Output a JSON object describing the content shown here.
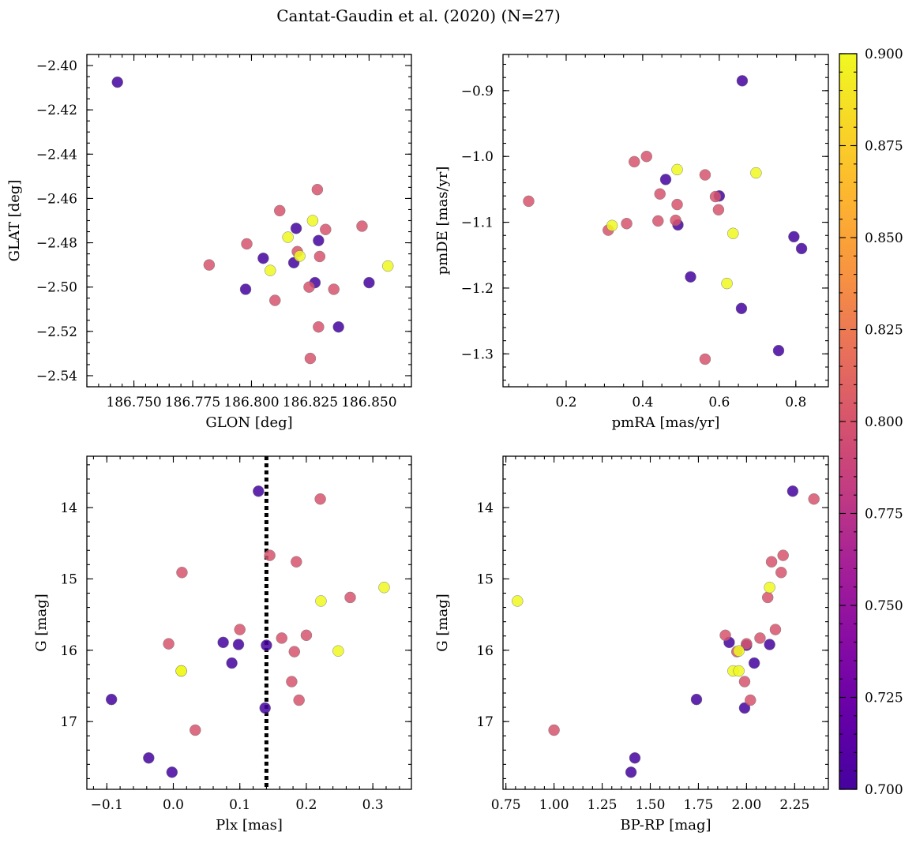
{
  "title": "Cantat-Gaudin et al. (2020) (N=27)",
  "colors": {
    "palette": [
      "#0d0887",
      "#2a0593",
      "#4c02a1",
      "#6a00a8",
      "#8c0ea3",
      "#a82296",
      "#c33d80",
      "#d8576b",
      "#ea7457",
      "#f89540",
      "#fdb42f",
      "#f8d627",
      "#f0f921"
    ],
    "cbar_min": 0.7,
    "cbar_max": 0.9
  },
  "colorbar": {
    "ticks": [
      0.7,
      0.725,
      0.75,
      0.775,
      0.8,
      0.825,
      0.85,
      0.875,
      0.9
    ],
    "tick_labels": [
      "0.700",
      "0.725",
      "0.750",
      "0.775",
      "0.800",
      "0.825",
      "0.850",
      "0.875",
      "0.900"
    ]
  },
  "stars": [
    {
      "glon": 186.743,
      "glat": -2.4075,
      "pmra": 0.66,
      "pmde": -0.885,
      "plx": -0.093,
      "g": 16.69,
      "bprp": 1.74,
      "p": 0.7
    },
    {
      "glon": 186.782,
      "glat": -2.49,
      "pmra": 0.102,
      "pmde": -1.068,
      "plx": 0.013,
      "g": 14.91,
      "bprp": 2.18,
      "p": 0.8
    },
    {
      "glon": 186.798,
      "glat": -2.4805,
      "pmra": 0.31,
      "pmde": -1.112,
      "plx": 0.1,
      "g": 15.71,
      "bprp": 2.15,
      "p": 0.8
    },
    {
      "glon": 186.7975,
      "glat": -2.501,
      "pmra": 0.46,
      "pmde": -1.035,
      "plx": 0.075,
      "g": 15.89,
      "bprp": 1.91,
      "p": 0.7
    },
    {
      "glon": 186.805,
      "glat": -2.487,
      "pmra": 0.492,
      "pmde": -1.104,
      "plx": 0.098,
      "g": 15.92,
      "bprp": 2.12,
      "p": 0.7
    },
    {
      "glon": 186.808,
      "glat": -2.4925,
      "pmra": 0.32,
      "pmde": -1.105,
      "plx": 0.012,
      "g": 16.29,
      "bprp": 1.93,
      "p": 0.9
    },
    {
      "glon": 186.81,
      "glat": -2.506,
      "pmra": 0.378,
      "pmde": -1.008,
      "plx": 0.163,
      "g": 15.83,
      "bprp": 2.07,
      "p": 0.8
    },
    {
      "glon": 186.812,
      "glat": -2.4655,
      "pmra": 0.41,
      "pmde": -1.0,
      "plx": 0.145,
      "g": 14.67,
      "bprp": 2.19,
      "p": 0.8
    },
    {
      "glon": 186.8155,
      "glat": -2.4775,
      "pmra": 0.636,
      "pmde": -1.117,
      "plx": 0.012,
      "g": 16.29,
      "bprp": 1.96,
      "p": 0.9
    },
    {
      "glon": 186.818,
      "glat": -2.489,
      "pmra": 0.525,
      "pmde": -1.183,
      "plx": 0.088,
      "g": 16.18,
      "bprp": 2.04,
      "p": 0.7
    },
    {
      "glon": 186.819,
      "glat": -2.4735,
      "pmra": 0.6,
      "pmde": -1.06,
      "plx": 0.14,
      "g": 15.93,
      "bprp": 2.0,
      "p": 0.7
    },
    {
      "glon": 186.8195,
      "glat": -2.484,
      "pmra": 0.445,
      "pmde": -1.057,
      "plx": 0.182,
      "g": 16.02,
      "bprp": 1.95,
      "p": 0.8
    },
    {
      "glon": 186.8205,
      "glat": -2.486,
      "pmra": 0.696,
      "pmde": -1.025,
      "plx": 0.248,
      "g": 16.01,
      "bprp": 1.96,
      "p": 0.9
    },
    {
      "glon": 186.8245,
      "glat": -2.5,
      "pmra": 0.59,
      "pmde": -1.061,
      "plx": 0.2,
      "g": 15.79,
      "bprp": 1.89,
      "p": 0.8
    },
    {
      "glon": 186.825,
      "glat": -2.5322,
      "pmra": 0.563,
      "pmde": -1.308,
      "plx": 0.033,
      "g": 17.12,
      "bprp": 1.0,
      "p": 0.8
    },
    {
      "glon": 186.826,
      "glat": -2.47,
      "pmra": 0.49,
      "pmde": -1.02,
      "plx": 0.317,
      "g": 15.12,
      "bprp": 2.12,
      "p": 0.9
    },
    {
      "glon": 186.827,
      "glat": -2.498,
      "pmra": 0.795,
      "pmde": -1.122,
      "plx": -0.037,
      "g": 17.51,
      "bprp": 1.42,
      "p": 0.7
    },
    {
      "glon": 186.828,
      "glat": -2.456,
      "pmra": 0.563,
      "pmde": -1.028,
      "plx": 0.221,
      "g": 13.88,
      "bprp": 2.35,
      "p": 0.8
    },
    {
      "glon": 186.8285,
      "glat": -2.479,
      "pmra": 0.658,
      "pmde": -1.231,
      "plx": 0.138,
      "g": 16.81,
      "bprp": 1.99,
      "p": 0.7
    },
    {
      "glon": 186.8285,
      "glat": -2.518,
      "pmra": 0.44,
      "pmde": -1.098,
      "plx": 0.189,
      "g": 16.7,
      "bprp": 2.02,
      "p": 0.8
    },
    {
      "glon": 186.829,
      "glat": -2.4862,
      "pmra": 0.49,
      "pmde": -1.073,
      "plx": 0.178,
      "g": 16.44,
      "bprp": 1.99,
      "p": 0.8
    },
    {
      "glon": 186.8315,
      "glat": -2.474,
      "pmra": 0.598,
      "pmde": -1.081,
      "plx": 0.266,
      "g": 15.26,
      "bprp": 2.11,
      "p": 0.8
    },
    {
      "glon": 186.835,
      "glat": -2.501,
      "pmra": 0.358,
      "pmde": -1.102,
      "plx": -0.007,
      "g": 15.91,
      "bprp": 2.0,
      "p": 0.8
    },
    {
      "glon": 186.837,
      "glat": -2.518,
      "pmra": 0.755,
      "pmde": -1.295,
      "plx": -0.002,
      "g": 17.71,
      "bprp": 1.4,
      "p": 0.7
    },
    {
      "glon": 186.847,
      "glat": -2.4725,
      "pmra": 0.486,
      "pmde": -1.097,
      "plx": 0.185,
      "g": 14.76,
      "bprp": 2.13,
      "p": 0.8
    },
    {
      "glon": 186.85,
      "glat": -2.498,
      "pmra": 0.815,
      "pmde": -1.14,
      "plx": 0.128,
      "g": 13.77,
      "bprp": 2.24,
      "p": 0.7
    },
    {
      "glon": 186.858,
      "glat": -2.4905,
      "pmra": 0.62,
      "pmde": -1.193,
      "plx": 0.222,
      "g": 15.31,
      "bprp": 0.81,
      "p": 0.9
    }
  ],
  "chart_data": [
    {
      "type": "scatter",
      "key": "sky",
      "xfield": "glon",
      "yfield": "glat",
      "xlabel": "GLON [deg]",
      "ylabel": "GLAT [deg]",
      "xlim": [
        186.73,
        186.868
      ],
      "ylim": [
        -2.545,
        -2.395
      ],
      "invert_y": false,
      "xticks": [
        186.75,
        186.775,
        186.8,
        186.825,
        186.85
      ],
      "xtick_labels": [
        "186.750",
        "186.775",
        "186.800",
        "186.825",
        "186.850"
      ],
      "yticks": [
        -2.54,
        -2.52,
        -2.5,
        -2.48,
        -2.46,
        -2.44,
        -2.42,
        -2.4
      ],
      "ytick_labels": [
        "−2.54",
        "−2.52",
        "−2.50",
        "−2.48",
        "−2.46",
        "−2.44",
        "−2.42",
        "−2.40"
      ],
      "xminor": 0.005,
      "yminor": 0.005
    },
    {
      "type": "scatter",
      "key": "pm",
      "xfield": "pmra",
      "yfield": "pmde",
      "xlabel": "pmRA [mas/yr]",
      "ylabel": "pmDE [mas/yr]",
      "xlim": [
        0.035,
        0.885
      ],
      "ylim": [
        -1.35,
        -0.845
      ],
      "invert_y": false,
      "xticks": [
        0.2,
        0.4,
        0.6,
        0.8
      ],
      "xtick_labels": [
        "0.2",
        "0.4",
        "0.6",
        "0.8"
      ],
      "yticks": [
        -1.3,
        -1.2,
        -1.1,
        -1.0,
        -0.9
      ],
      "ytick_labels": [
        "−1.3",
        "−1.2",
        "−1.1",
        "−1.0",
        "−0.9"
      ],
      "xminor": 0.05,
      "yminor": 0.02
    },
    {
      "type": "scatter",
      "key": "plxg",
      "xfield": "plx",
      "yfield": "g",
      "xlabel": "Plx [mas]",
      "ylabel": "G [mag]",
      "xlim": [
        -0.13,
        0.358
      ],
      "ylim": [
        13.28,
        17.95
      ],
      "invert_y": true,
      "vline": 0.14,
      "xticks": [
        -0.1,
        0.0,
        0.1,
        0.2,
        0.3
      ],
      "xtick_labels": [
        "−0.1",
        "0.0",
        "0.1",
        "0.2",
        "0.3"
      ],
      "yticks": [
        14,
        15,
        16,
        17
      ],
      "ytick_labels": [
        "14",
        "15",
        "16",
        "17"
      ],
      "xminor": 0.02,
      "yminor": 0.2
    },
    {
      "type": "scatter",
      "key": "cmd",
      "xfield": "bprp",
      "yfield": "g",
      "xlabel": "BP-RP [mag]",
      "ylabel": "G [mag]",
      "xlim": [
        0.735,
        2.425
      ],
      "ylim": [
        13.28,
        17.95
      ],
      "invert_y": true,
      "xticks": [
        0.75,
        1.0,
        1.25,
        1.5,
        1.75,
        2.0,
        2.25
      ],
      "xtick_labels": [
        "0.75",
        "1.00",
        "1.25",
        "1.50",
        "1.75",
        "2.00",
        "2.25"
      ],
      "yticks": [
        14,
        15,
        16,
        17
      ],
      "ytick_labels": [
        "14",
        "15",
        "16",
        "17"
      ],
      "xminor": 0.05,
      "yminor": 0.2
    }
  ]
}
